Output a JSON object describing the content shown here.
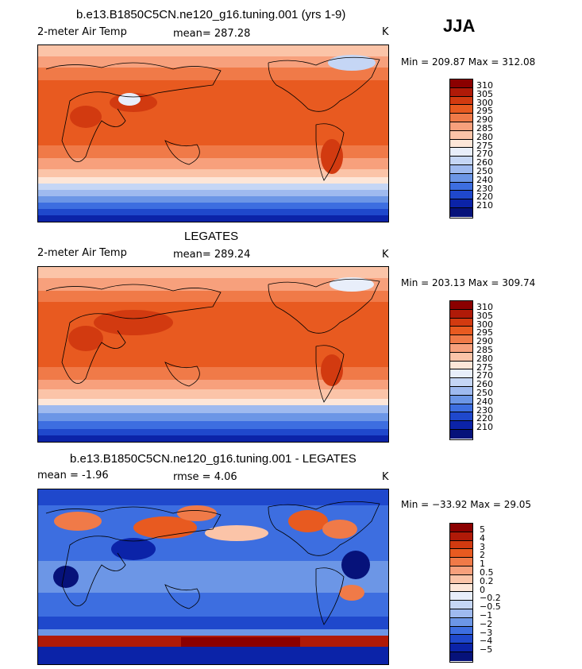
{
  "season": "JJA",
  "panels": [
    {
      "title": "b.e13.B1850C5CN.ne120_g16.tuning.001 (yrs 1-9)",
      "left_label": "2-meter Air Temp",
      "mid_label": "mean=  287.28",
      "unit": "K",
      "minmax": "Min = 209.87 Max = 312.08",
      "colorbar_labels": [
        "310",
        "305",
        "300",
        "295",
        "290",
        "285",
        "280",
        "275",
        "270",
        "260",
        "250",
        "240",
        "230",
        "220",
        "210"
      ]
    },
    {
      "title": "LEGATES",
      "left_label": "2-meter Air Temp",
      "mid_label": "mean=  289.24",
      "unit": "K",
      "minmax": "Min = 203.13 Max = 309.74",
      "colorbar_labels": [
        "310",
        "305",
        "300",
        "295",
        "290",
        "285",
        "280",
        "275",
        "270",
        "260",
        "250",
        "240",
        "230",
        "220",
        "210"
      ]
    },
    {
      "title": "b.e13.B1850C5CN.ne120_g16.tuning.001 - LEGATES",
      "left_label": "mean =   -1.96",
      "mid_label": "rmse =    4.06",
      "unit": "K",
      "minmax": "Min = −33.92 Max =  29.05",
      "colorbar_labels": [
        "5",
        "4",
        "3",
        "2",
        "1",
        "0.5",
        "0.2",
        "0",
        "−0.2",
        "−0.5",
        "−1",
        "−2",
        "−3",
        "−4",
        "−5"
      ]
    }
  ],
  "colors": {
    "temp_scale": [
      "#8b0000",
      "#b01a08",
      "#d23a10",
      "#e85a20",
      "#f07a48",
      "#f7a07c",
      "#fbc4a8",
      "#fde6d8",
      "#e8eefa",
      "#c5d6f5",
      "#9fbaef",
      "#6c96e6",
      "#3d6ee0",
      "#1f48cc",
      "#0b23a8",
      "#06127a"
    ],
    "diff_scale": [
      "#8b0000",
      "#b01a08",
      "#d23a10",
      "#e85a20",
      "#f07a48",
      "#f7a07c",
      "#fbc4a8",
      "#fde6d8",
      "#e8eefa",
      "#c5d6f5",
      "#9fbaef",
      "#6c96e6",
      "#3d6ee0",
      "#1f48cc",
      "#0b23a8",
      "#06127a"
    ]
  }
}
